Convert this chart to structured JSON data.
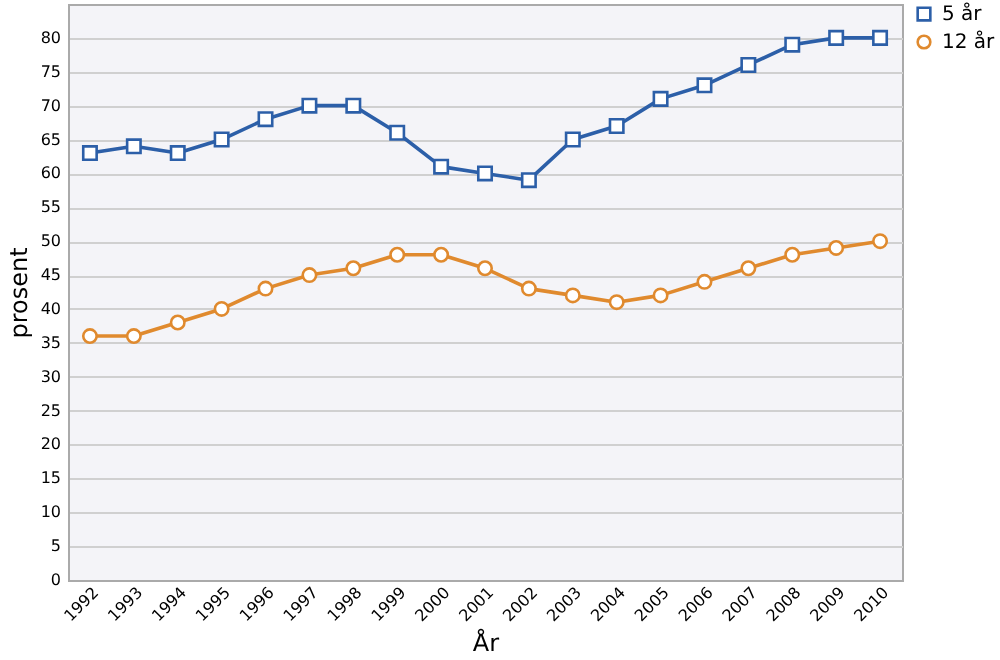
{
  "chart_data": {
    "type": "line",
    "xlabel": "År",
    "ylabel": "prosent",
    "categories": [
      "1992",
      "1993",
      "1994",
      "1995",
      "1996",
      "1997",
      "1998",
      "1999",
      "2000",
      "2001",
      "2002",
      "2003",
      "2004",
      "2005",
      "2006",
      "2007",
      "2008",
      "2009",
      "2010"
    ],
    "series": [
      {
        "name": "5 år",
        "color": "#2c5fa8",
        "marker": "square",
        "values": [
          63,
          64,
          63,
          65,
          68,
          70,
          70,
          66,
          61,
          60,
          59,
          65,
          67,
          71,
          73,
          76,
          79,
          80,
          80
        ]
      },
      {
        "name": "12 år",
        "color": "#e08a2e",
        "marker": "circle",
        "values": [
          36,
          36,
          38,
          40,
          43,
          45,
          46,
          48,
          48,
          46,
          43,
          42,
          41,
          42,
          44,
          46,
          48,
          49,
          50
        ]
      }
    ],
    "ylim": [
      0,
      85
    ],
    "yticks": [
      0,
      5,
      10,
      15,
      20,
      25,
      30,
      35,
      40,
      45,
      50,
      55,
      60,
      65,
      70,
      75,
      80
    ],
    "grid": "y",
    "legend": "right",
    "line_style": "solid"
  }
}
